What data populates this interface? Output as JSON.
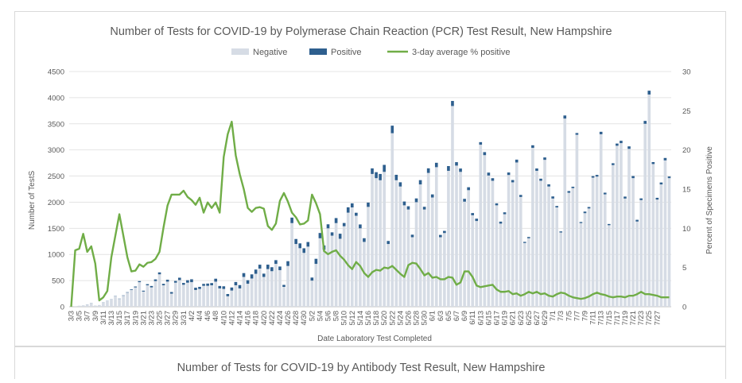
{
  "chart_data": {
    "type": "bar",
    "title": "Number of Tests for COVID-19 by Polymerase Chain Reaction (PCR) Test Result, New Hampshire",
    "next_chart_title": "Number of Tests for COVID-19 by Antibody Test Result, New Hampshire",
    "xlabel": "Date Laboratory Test Completed",
    "ylabel": "Number of TestS",
    "y2label": "Percent of Specimens Positive",
    "ylim": [
      0,
      4500
    ],
    "y2lim": [
      0,
      30
    ],
    "y_ticks": [
      "0",
      "500",
      "1000",
      "1500",
      "2000",
      "2500",
      "3000",
      "3500",
      "4000",
      "4500"
    ],
    "y2_ticks": [
      "0",
      "5",
      "10",
      "15",
      "20",
      "25",
      "30"
    ],
    "legend_position": "top-center",
    "grid": "horizontal",
    "colors": {
      "negative": "#d6dce5",
      "positive": "#2e5f8e",
      "line": "#70ad47",
      "grid": "#e4e4e4",
      "text": "#595959"
    },
    "start_date": "3/3",
    "x_tick_labels": [
      "3/3",
      "3/5",
      "3/7",
      "3/9",
      "3/11",
      "3/13",
      "3/15",
      "3/17",
      "3/19",
      "3/21",
      "3/23",
      "3/25",
      "3/27",
      "3/29",
      "3/31",
      "4/2",
      "4/4",
      "4/6",
      "4/8",
      "4/10",
      "4/12",
      "4/14",
      "4/16",
      "4/18",
      "4/20",
      "4/22",
      "4/24",
      "4/26",
      "4/28",
      "4/30",
      "5/2",
      "5/4",
      "5/6",
      "5/8",
      "5/10",
      "5/12",
      "5/14",
      "5/16",
      "5/18",
      "5/20",
      "5/22",
      "5/24",
      "5/26",
      "5/28",
      "5/30",
      "6/1",
      "6/3",
      "6/5",
      "6/7",
      "6/9",
      "6/11",
      "6/13",
      "6/15",
      "6/17",
      "6/19",
      "6/21",
      "6/23",
      "6/25",
      "6/27",
      "6/29",
      "7/1",
      "7/3",
      "7/5",
      "7/7",
      "7/9",
      "7/11",
      "7/13",
      "7/15",
      "7/17",
      "7/19",
      "7/21",
      "7/23",
      "7/25",
      "7/27"
    ],
    "series": [
      {
        "name": "Negative",
        "type": "bar",
        "values": [
          2,
          5,
          20,
          28,
          40,
          70,
          20,
          30,
          80,
          110,
          140,
          200,
          150,
          210,
          270,
          320,
          370,
          470,
          290,
          410,
          370,
          490,
          620,
          410,
          480,
          250,
          460,
          510,
          420,
          460,
          470,
          320,
          340,
          400,
          400,
          410,
          480,
          350,
          340,
          200,
          310,
          410,
          350,
          570,
          440,
          540,
          630,
          730,
          570,
          720,
          680,
          820,
          700,
          380,
          780,
          1600,
          1200,
          1120,
          1030,
          1150,
          500,
          820,
          1310,
          1090,
          1500,
          1360,
          1600,
          1300,
          1540,
          1800,
          1900,
          1740,
          1500,
          1240,
          1910,
          2540,
          2460,
          2420,
          2580,
          1200,
          3320,
          2420,
          2300,
          1940,
          1860,
          1330,
          2000,
          2340,
          1860,
          2560,
          2090,
          2670,
          1330,
          1410,
          2600,
          3840,
          2700,
          2580,
          2010,
          2230,
          1750,
          1640,
          3100,
          2900,
          2510,
          2410,
          1940,
          1590,
          1770,
          2520,
          2380,
          2760,
          2100,
          1220,
          1310,
          3040,
          2600,
          2410,
          2810,
          2300,
          2070,
          1900,
          1420,
          3600,
          2180,
          2270,
          3290,
          1600,
          1790,
          1880,
          2470,
          2490,
          3300,
          2150,
          1560,
          2710,
          3080,
          3130,
          2070,
          3020,
          2460,
          1630,
          2040,
          3500,
          4060,
          2730,
          2050,
          2340,
          2800,
          2460
        ],
        "positive": [
          0,
          0,
          0,
          0,
          2,
          2,
          1,
          1,
          3,
          3,
          3,
          5,
          5,
          7,
          8,
          12,
          17,
          20,
          17,
          22,
          27,
          33,
          37,
          28,
          37,
          31,
          33,
          45,
          35,
          47,
          55,
          44,
          40,
          37,
          43,
          43,
          56,
          47,
          51,
          43,
          58,
          63,
          64,
          73,
          67,
          79,
          81,
          74,
          63,
          85,
          76,
          71,
          69,
          38,
          91,
          105,
          96,
          92,
          88,
          88,
          58,
          97,
          101,
          83,
          77,
          63,
          96,
          97,
          62,
          102,
          78,
          58,
          74,
          71,
          82,
          107,
          114,
          120,
          134,
          58,
          144,
          104,
          81,
          73,
          62,
          48,
          72,
          82,
          52,
          88,
          59,
          84,
          44,
          41,
          91,
          97,
          66,
          64,
          54,
          56,
          42,
          45,
          49,
          58,
          56,
          49,
          38,
          38,
          36,
          48,
          44,
          54,
          39,
          21,
          24,
          49,
          45,
          40,
          46,
          42,
          40,
          27,
          21,
          59,
          33,
          26,
          33,
          21,
          30,
          28,
          29,
          32,
          47,
          32,
          23,
          35,
          42,
          45,
          37,
          48,
          40,
          33,
          33,
          55,
          73,
          37,
          34,
          37,
          46,
          31
        ]
      },
      {
        "name": "Positive",
        "type": "bar"
      },
      {
        "name": "3-day average % positive",
        "type": "line",
        "axis": "right",
        "anchors": [
          [
            0,
            0
          ],
          [
            1,
            7.2
          ],
          [
            2,
            7.4
          ],
          [
            3,
            9.3
          ],
          [
            4,
            7.0
          ],
          [
            5,
            7.7
          ],
          [
            6,
            5.5
          ],
          [
            7,
            0.8
          ],
          [
            8,
            1.2
          ],
          [
            9,
            2.0
          ],
          [
            10,
            6.3
          ],
          [
            12,
            11.8
          ],
          [
            14,
            6.3
          ],
          [
            15,
            4.5
          ],
          [
            16,
            4.6
          ],
          [
            17,
            5.4
          ],
          [
            18,
            5.1
          ],
          [
            19,
            5.6
          ],
          [
            20,
            5.7
          ],
          [
            21,
            6.1
          ],
          [
            22,
            7.0
          ],
          [
            23,
            10.1
          ],
          [
            24,
            12.9
          ],
          [
            25,
            14.3
          ],
          [
            26,
            14.3
          ],
          [
            27,
            14.3
          ],
          [
            28,
            14.8
          ],
          [
            29,
            14.0
          ],
          [
            30,
            13.6
          ],
          [
            31,
            13.0
          ],
          [
            32,
            13.9
          ],
          [
            33,
            12.0
          ],
          [
            34,
            13.3
          ],
          [
            35,
            12.6
          ],
          [
            36,
            13.3
          ],
          [
            37,
            12.0
          ],
          [
            38,
            19.1
          ],
          [
            39,
            22.0
          ],
          [
            40,
            23.6
          ],
          [
            41,
            19.3
          ],
          [
            42,
            16.9
          ],
          [
            43,
            15.0
          ],
          [
            44,
            12.6
          ],
          [
            45,
            12.1
          ],
          [
            46,
            12.6
          ],
          [
            47,
            12.7
          ],
          [
            48,
            12.5
          ],
          [
            49,
            10.3
          ],
          [
            50,
            9.8
          ],
          [
            51,
            10.6
          ],
          [
            52,
            13.5
          ],
          [
            53,
            14.5
          ],
          [
            54,
            13.4
          ],
          [
            55,
            12.0
          ],
          [
            56,
            11.4
          ],
          [
            57,
            10.5
          ],
          [
            58,
            10.6
          ],
          [
            59,
            11.0
          ],
          [
            60,
            14.3
          ],
          [
            61,
            13.2
          ],
          [
            62,
            11.8
          ],
          [
            63,
            7.1
          ],
          [
            64,
            6.7
          ],
          [
            65,
            7.0
          ],
          [
            66,
            7.2
          ],
          [
            67,
            6.5
          ],
          [
            68,
            6.0
          ],
          [
            69,
            5.3
          ],
          [
            70,
            4.8
          ],
          [
            71,
            5.7
          ],
          [
            72,
            5.2
          ],
          [
            73,
            4.3
          ],
          [
            74,
            3.8
          ],
          [
            75,
            4.4
          ],
          [
            76,
            4.7
          ],
          [
            77,
            4.6
          ],
          [
            78,
            5.0
          ],
          [
            79,
            4.9
          ],
          [
            80,
            5.2
          ],
          [
            81,
            4.7
          ],
          [
            82,
            4.2
          ],
          [
            83,
            3.8
          ],
          [
            84,
            5.3
          ],
          [
            85,
            5.6
          ],
          [
            86,
            5.5
          ],
          [
            87,
            4.8
          ],
          [
            88,
            4.0
          ],
          [
            89,
            4.3
          ],
          [
            90,
            3.7
          ],
          [
            91,
            3.8
          ],
          [
            92,
            3.5
          ],
          [
            93,
            3.5
          ],
          [
            94,
            3.8
          ],
          [
            95,
            3.7
          ],
          [
            96,
            2.8
          ],
          [
            97,
            3.1
          ],
          [
            98,
            4.5
          ],
          [
            99,
            4.5
          ],
          [
            100,
            3.8
          ],
          [
            101,
            2.7
          ],
          [
            102,
            2.5
          ],
          [
            103,
            2.6
          ],
          [
            104,
            2.7
          ],
          [
            105,
            2.8
          ],
          [
            106,
            2.2
          ],
          [
            107,
            1.9
          ],
          [
            108,
            1.9
          ],
          [
            109,
            2.0
          ],
          [
            110,
            1.6
          ],
          [
            111,
            1.7
          ],
          [
            112,
            1.4
          ],
          [
            113,
            1.6
          ],
          [
            114,
            1.9
          ],
          [
            115,
            1.7
          ],
          [
            116,
            1.9
          ],
          [
            117,
            1.6
          ],
          [
            118,
            1.7
          ],
          [
            119,
            1.4
          ],
          [
            120,
            1.3
          ],
          [
            121,
            1.6
          ],
          [
            122,
            1.8
          ],
          [
            123,
            1.7
          ],
          [
            124,
            1.4
          ],
          [
            125,
            1.2
          ],
          [
            126,
            1.1
          ],
          [
            127,
            1.0
          ],
          [
            128,
            1.1
          ],
          [
            129,
            1.3
          ],
          [
            130,
            1.6
          ],
          [
            131,
            1.8
          ],
          [
            132,
            1.6
          ],
          [
            133,
            1.5
          ],
          [
            134,
            1.3
          ],
          [
            135,
            1.2
          ],
          [
            136,
            1.3
          ],
          [
            137,
            1.3
          ],
          [
            138,
            1.2
          ],
          [
            139,
            1.4
          ],
          [
            140,
            1.4
          ],
          [
            141,
            1.6
          ],
          [
            142,
            1.9
          ],
          [
            143,
            1.6
          ],
          [
            144,
            1.6
          ],
          [
            145,
            1.5
          ],
          [
            146,
            1.4
          ],
          [
            147,
            1.2
          ],
          [
            148,
            1.2
          ],
          [
            149,
            1.2
          ]
        ]
      }
    ]
  }
}
